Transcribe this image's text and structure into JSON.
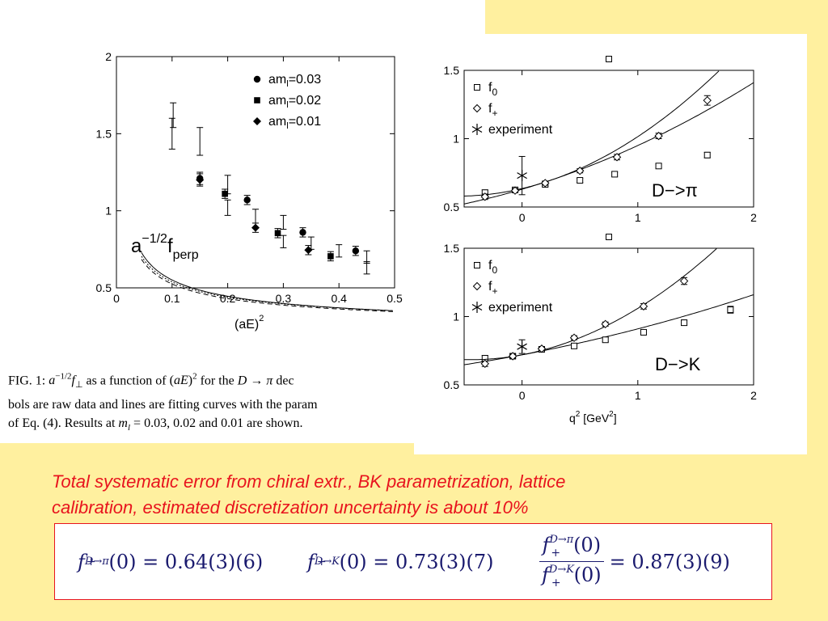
{
  "caption": {
    "label": "FIG. 1:",
    "part1": " as a function of ",
    "part2": " for the ",
    "part3": " dec",
    "line2": "bols are raw data and lines are fitting curves with the param",
    "line3a": "of Eq. (4). Results at ",
    "line3b": " are shown."
  },
  "note": {
    "line1": "Total systematic error from chiral extr., BK parametrization, lattice",
    "line2": "calibration, estimated discretization uncertainty is about 10%"
  },
  "formulas": {
    "f1_lhs": "f",
    "f1_sup": "D→π",
    "f1_rhs": "(0) = 0.64(3)(6)",
    "f2_lhs": "f",
    "f2_sup": "D→K",
    "f2_rhs": "(0) = 0.73(3)(7)",
    "f3_num": "f₊^{D→π}(0)",
    "f3_num_text": "(0)",
    "f3_den_text": "(0)",
    "f3_rhs": "= 0.87(3)(9)",
    "sub": "+"
  },
  "chart_data": [
    {
      "type": "scatter",
      "title": "",
      "annotation": "a−1/2fperp",
      "annotation_parts": {
        "base": "a",
        "exp": "−1/2",
        "f": "f",
        "sub": "perp"
      },
      "xlabel": "(aE)",
      "xlabel_exp": "2",
      "ylabel": "",
      "xlim": [
        0,
        0.5
      ],
      "ylim": [
        0.5,
        2
      ],
      "xticks": [
        0,
        0.1,
        0.2,
        0.3,
        0.4,
        0.5
      ],
      "xtick_labels": [
        "0",
        "0.1",
        "0.2",
        "0.3",
        "0.4",
        "0.5"
      ],
      "yticks": [
        0.5,
        1,
        1.5,
        2
      ],
      "ytick_labels": [
        "0.5",
        "1",
        "1.5",
        "2"
      ],
      "legend_position": "top-right",
      "series": [
        {
          "name": "aml=0.03",
          "legend_base": "am",
          "legend_sub": "l",
          "legend_val": "=0.03",
          "marker": "circle",
          "line": "solid",
          "curve_k": 0.272,
          "curve_c": 0.19,
          "points": [
            [
              0.15,
              1.21
            ],
            [
              0.235,
              1.07
            ],
            [
              0.335,
              0.86
            ],
            [
              0.43,
              0.74
            ]
          ],
          "errors": [
            0.04,
            0.03,
            0.03,
            0.03
          ]
        },
        {
          "name": "aml=0.02",
          "legend_base": "am",
          "legend_sub": "l",
          "legend_val": "=0.02",
          "marker": "square",
          "line": "dotted",
          "curve_k": 0.255,
          "curve_c": 0.2,
          "points": [
            [
              0.195,
              1.11
            ],
            [
              0.29,
              0.855
            ],
            [
              0.385,
              0.705
            ]
          ],
          "errors": [
            0.03,
            0.03,
            0.03
          ]
        },
        {
          "name": "aml=0.01",
          "legend_base": "am",
          "legend_sub": "l",
          "legend_val": "=0.01",
          "marker": "diamond",
          "line": "dashed",
          "curve_k": 0.245,
          "curve_c": 0.2,
          "points": [
            [
              0.15,
              1.2
            ],
            [
              0.25,
              0.89
            ],
            [
              0.345,
              0.745
            ]
          ],
          "errors": [
            0.04,
            0.03,
            0.03
          ]
        }
      ],
      "error_bars_only": [
        {
          "x": 0.1,
          "y": 1.5,
          "e": 0.1
        },
        {
          "x": 0.102,
          "y": 1.62,
          "e": 0.08
        },
        {
          "x": 0.15,
          "y": 1.45,
          "e": 0.09
        },
        {
          "x": 0.2,
          "y": 1.17,
          "e": 0.06
        },
        {
          "x": 0.2,
          "y": 1.02,
          "e": 0.05
        },
        {
          "x": 0.25,
          "y": 0.95,
          "e": 0.06
        },
        {
          "x": 0.3,
          "y": 0.925,
          "e": 0.045
        },
        {
          "x": 0.3,
          "y": 0.8,
          "e": 0.04
        },
        {
          "x": 0.35,
          "y": 0.79,
          "e": 0.04
        },
        {
          "x": 0.4,
          "y": 0.74,
          "e": 0.04
        },
        {
          "x": 0.45,
          "y": 0.7,
          "e": 0.04
        },
        {
          "x": 0.45,
          "y": 0.63,
          "e": 0.04
        }
      ]
    },
    {
      "type": "scatter",
      "title": "",
      "annotation": "D−>π",
      "xlabel": "",
      "ylabel": "",
      "xlim": [
        -0.5,
        2
      ],
      "ylim": [
        0.5,
        1.5
      ],
      "xticks": [
        0,
        1,
        2
      ],
      "xtick_labels": [
        "0",
        "1",
        "2"
      ],
      "yticks": [
        0.5,
        1,
        1.5
      ],
      "ytick_labels": [
        "0.5",
        "1",
        "1.5"
      ],
      "legend_position": "top-left",
      "outlier_marker": {
        "x": 0.75,
        "y": 1.56
      },
      "series": [
        {
          "name": "f0",
          "legend_base": "f",
          "legend_sub": "0",
          "marker": "open-square",
          "curve": {
            "a": 0.63,
            "b": 0.25,
            "c": 0.07
          },
          "points": [
            [
              -0.32,
              0.605
            ],
            [
              -0.06,
              0.625
            ],
            [
              0.2,
              0.665
            ],
            [
              0.5,
              0.695
            ],
            [
              0.8,
              0.74
            ],
            [
              1.18,
              0.8
            ],
            [
              1.6,
              0.88
            ]
          ],
          "errors": [
            0.02,
            0.015,
            0.015,
            0.015,
            0.015,
            0.015,
            0.02
          ]
        },
        {
          "name": "f+",
          "legend_base": "f",
          "legend_sub": "+",
          "marker": "open-diamond",
          "curve": {
            "a": 0.635,
            "b": 0.2,
            "c": 0.18
          },
          "points": [
            [
              -0.32,
              0.575
            ],
            [
              -0.06,
              0.62
            ],
            [
              0.2,
              0.675
            ],
            [
              0.5,
              0.765
            ],
            [
              0.82,
              0.865
            ],
            [
              1.18,
              1.02
            ],
            [
              1.6,
              1.28
            ]
          ],
          "errors": [
            0.02,
            0.015,
            0.015,
            0.015,
            0.02,
            0.02,
            0.035
          ]
        },
        {
          "name": "experiment",
          "legend_base": "experiment",
          "legend_sub": "",
          "marker": "asterisk",
          "points": [
            [
              0,
              0.73
            ]
          ],
          "errors": [
            0.14
          ]
        }
      ]
    },
    {
      "type": "scatter",
      "title": "",
      "annotation": "D−>K",
      "xlabel": "q",
      "xlabel_exp": "2",
      "xlabel_unit": " [GeV",
      "xlabel_unit_exp": "2",
      "xlabel_close": "]",
      "ylabel": "",
      "xlim": [
        -0.5,
        2
      ],
      "ylim": [
        0.5,
        1.5
      ],
      "xticks": [
        0,
        1,
        2
      ],
      "xtick_labels": [
        "0",
        "1",
        "2"
      ],
      "yticks": [
        0.5,
        1,
        1.5
      ],
      "ytick_labels": [
        "0.5",
        "1",
        "1.5"
      ],
      "legend_position": "top-left",
      "outlier_marker": {
        "x": 0.75,
        "y": 1.56
      },
      "series": [
        {
          "name": "f0",
          "legend_base": "f",
          "legend_sub": "0",
          "marker": "open-square",
          "curve": {
            "a": 0.72,
            "b": 0.16,
            "c": 0.03
          },
          "points": [
            [
              -0.32,
              0.695
            ],
            [
              -0.08,
              0.71
            ],
            [
              0.17,
              0.76
            ],
            [
              0.45,
              0.785
            ],
            [
              0.72,
              0.83
            ],
            [
              1.05,
              0.885
            ],
            [
              1.4,
              0.955
            ],
            [
              1.8,
              1.05
            ]
          ],
          "errors": [
            0.02,
            0.015,
            0.015,
            0.015,
            0.015,
            0.015,
            0.02,
            0.025
          ]
        },
        {
          "name": "f+",
          "legend_base": "f",
          "legend_sub": "+",
          "marker": "open-diamond",
          "curve": {
            "a": 0.72,
            "b": 0.16,
            "c": 0.18
          },
          "points": [
            [
              -0.32,
              0.655
            ],
            [
              -0.08,
              0.71
            ],
            [
              0.17,
              0.765
            ],
            [
              0.45,
              0.845
            ],
            [
              0.72,
              0.945
            ],
            [
              1.05,
              1.075
            ],
            [
              1.4,
              1.26
            ]
          ],
          "errors": [
            0.02,
            0.015,
            0.015,
            0.015,
            0.015,
            0.02,
            0.025
          ]
        },
        {
          "name": "experiment",
          "legend_base": "experiment",
          "legend_sub": "",
          "marker": "asterisk",
          "points": [
            [
              0,
              0.78
            ]
          ],
          "errors": [
            0.05
          ]
        }
      ]
    }
  ]
}
